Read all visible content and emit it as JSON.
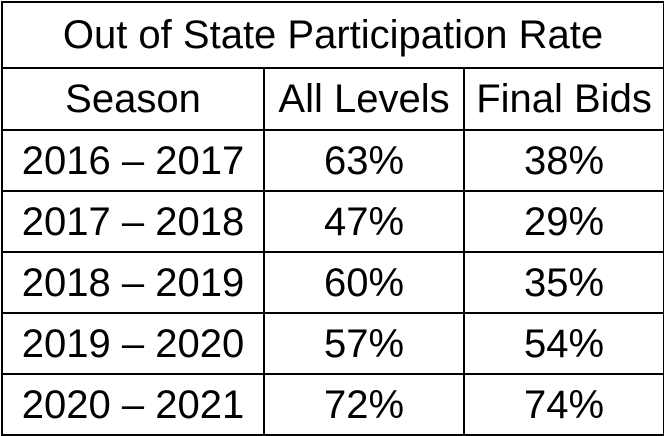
{
  "chart_data": {
    "type": "table",
    "title": "Out of State Participation Rate",
    "columns": [
      "Season",
      "All Levels",
      "Final Bids"
    ],
    "rows": [
      {
        "season": "2016 – 2017",
        "all_levels": "63%",
        "final_bids": "38%"
      },
      {
        "season": "2017 – 2018",
        "all_levels": "47%",
        "final_bids": "29%"
      },
      {
        "season": "2018 – 2019",
        "all_levels": "60%",
        "final_bids": "35%"
      },
      {
        "season": "2019 – 2020",
        "all_levels": "57%",
        "final_bids": "54%"
      },
      {
        "season": "2020 – 2021",
        "all_levels": "72%",
        "final_bids": "74%"
      }
    ]
  }
}
